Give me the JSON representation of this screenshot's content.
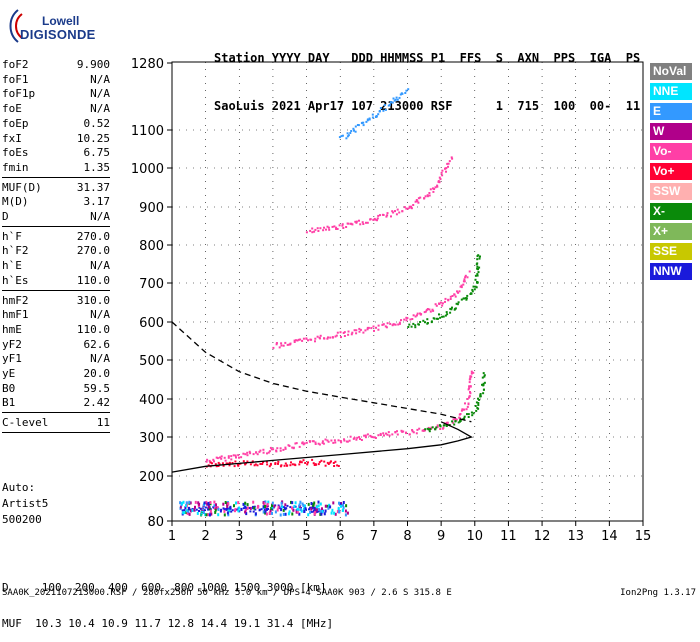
{
  "logo": {
    "line1": "Lowell",
    "line2": "DIGISONDE"
  },
  "header": {
    "line1": "Station YYYY DAY   DDD HHMMSS P1  FFS  S  AXN  PPS  IGA  PS",
    "line2": "SaoLuis 2021 Apr17 107 213000 RSF      1  715  100  00-  11"
  },
  "parameters": [
    {
      "k": "foF2",
      "v": "9.900"
    },
    {
      "k": "foF1",
      "v": "N/A"
    },
    {
      "k": "foF1p",
      "v": "N/A"
    },
    {
      "k": "foE",
      "v": "N/A"
    },
    {
      "k": "foEp",
      "v": "0.52"
    },
    {
      "k": "fxI",
      "v": "10.25"
    },
    {
      "k": "foEs",
      "v": "6.75"
    },
    {
      "k": "fmin",
      "v": "1.35"
    },
    {
      "k": "MUF(D)",
      "v": "31.37",
      "sep": true
    },
    {
      "k": "M(D)",
      "v": "3.17"
    },
    {
      "k": "D",
      "v": "N/A"
    },
    {
      "k": "h`F",
      "v": "270.0",
      "sep": true
    },
    {
      "k": "h`F2",
      "v": "270.0"
    },
    {
      "k": "h`E",
      "v": "N/A"
    },
    {
      "k": "h`Es",
      "v": "110.0"
    },
    {
      "k": "hmF2",
      "v": "310.0",
      "sep": true
    },
    {
      "k": "hmF1",
      "v": "N/A"
    },
    {
      "k": "hmE",
      "v": "110.0"
    },
    {
      "k": "yF2",
      "v": "62.6"
    },
    {
      "k": "yF1",
      "v": "N/A"
    },
    {
      "k": "yE",
      "v": "20.0"
    },
    {
      "k": "B0",
      "v": "59.5"
    },
    {
      "k": "B1",
      "v": "2.42"
    },
    {
      "k": "C-level",
      "v": "11",
      "sep": true
    }
  ],
  "auto": {
    "label": "Auto:",
    "artist": "Artist5",
    "version": "500200"
  },
  "legend": [
    {
      "label": "NoVal",
      "bg": "#808080",
      "fg": "#ffffff"
    },
    {
      "label": "NNE",
      "bg": "#00e5ff",
      "fg": "#ffffff"
    },
    {
      "label": "E",
      "bg": "#3399ff",
      "fg": "#ffffff"
    },
    {
      "label": "W",
      "bg": "#b0008a",
      "fg": "#ffffff"
    },
    {
      "label": "Vo-",
      "bg": "#ff3fa6",
      "fg": "#ffffff"
    },
    {
      "label": "Vo+",
      "bg": "#ff0033",
      "fg": "#ffffff"
    },
    {
      "label": "SSW",
      "bg": "#ffb0b0",
      "fg": "#ffffff"
    },
    {
      "label": "X-",
      "bg": "#0a8a0a",
      "fg": "#ffffff"
    },
    {
      "label": "X+",
      "bg": "#7fb85a",
      "fg": "#ffffff"
    },
    {
      "label": "SSE",
      "bg": "#c8c800",
      "fg": "#ffffff"
    },
    {
      "label": "NNW",
      "bg": "#1a1adb",
      "fg": "#ffffff"
    }
  ],
  "footer": {
    "line1": "D     100  200  400  600  800 1000 1500 3000 [km]",
    "line2": "MUF  10.3 10.4 10.9 11.7 12.8 14.4 19.1 31.4 [MHz]",
    "status": "SAA0K_2021107213000.RSF / 280fx256h 50 kHz 5.0 km / DPS-4 SAA0K 903 / 2.6 S 315.8 E",
    "version": "Ion2Png 1.3.17"
  },
  "chart_data": {
    "type": "scatter",
    "title": "",
    "xlabel": "",
    "ylabel": "",
    "xlim": [
      1,
      15
    ],
    "ylim": [
      80,
      1300
    ],
    "x_ticks": [
      1,
      2,
      3,
      4,
      5,
      6,
      7,
      8,
      9,
      10,
      11,
      12,
      13,
      14,
      15
    ],
    "y_ticks": [
      80,
      200,
      300,
      400,
      500,
      600,
      700,
      800,
      900,
      1000,
      1100,
      1280
    ],
    "traces": [
      {
        "name": "F2 O-trace",
        "color": "#ff3fa6",
        "x": [
          2,
          3,
          4,
          5,
          6,
          7,
          8,
          9,
          9.5,
          9.8,
          9.9
        ],
        "y": [
          240,
          255,
          270,
          285,
          295,
          305,
          315,
          330,
          350,
          400,
          480
        ]
      },
      {
        "name": "F2 X-trace",
        "color": "#0a8a0a",
        "x": [
          8.5,
          9,
          9.5,
          10,
          10.2,
          10.25
        ],
        "y": [
          320,
          330,
          345,
          370,
          420,
          470
        ]
      },
      {
        "name": "2F2 O-trace",
        "color": "#ff3fa6",
        "x": [
          4,
          5,
          6,
          7,
          8,
          8.8,
          9.4,
          9.8
        ],
        "y": [
          540,
          555,
          570,
          585,
          610,
          640,
          670,
          730
        ]
      },
      {
        "name": "2F2 X-trace",
        "color": "#0a8a0a",
        "x": [
          8,
          8.8,
          9.4,
          10,
          10.1
        ],
        "y": [
          590,
          610,
          640,
          690,
          780
        ]
      },
      {
        "name": "3F2 trace",
        "color": "#ff3fa6",
        "x": [
          5,
          6,
          7,
          8,
          8.8,
          9.3
        ],
        "y": [
          840,
          850,
          870,
          900,
          950,
          1030
        ]
      },
      {
        "name": "4F2 trace",
        "color": "#3399ff",
        "x": [
          6,
          6.5,
          7,
          8
        ],
        "y": [
          1080,
          1110,
          1140,
          1210
        ]
      },
      {
        "name": "Es spread",
        "color": "#1a1adb",
        "x": [
          1.3,
          2,
          3,
          4,
          5,
          5.5
        ],
        "y": [
          110,
          115,
          112,
          118,
          114,
          110
        ]
      },
      {
        "name": "E sporadic multiple",
        "color": "#ff0033",
        "x": [
          2,
          3,
          4,
          5,
          6
        ],
        "y": [
          230,
          235,
          232,
          238,
          233
        ]
      }
    ],
    "profile_solid": {
      "x": [
        1,
        2,
        4,
        6,
        8,
        9,
        9.5,
        9.9,
        9.5,
        9
      ],
      "y": [
        210,
        225,
        240,
        255,
        270,
        280,
        290,
        300,
        320,
        340
      ]
    },
    "profile_dashed": {
      "x": [
        1,
        2,
        3,
        4,
        5,
        6,
        7,
        8,
        9,
        9.9
      ],
      "y": [
        600,
        520,
        470,
        440,
        420,
        405,
        390,
        375,
        360,
        340
      ]
    }
  }
}
